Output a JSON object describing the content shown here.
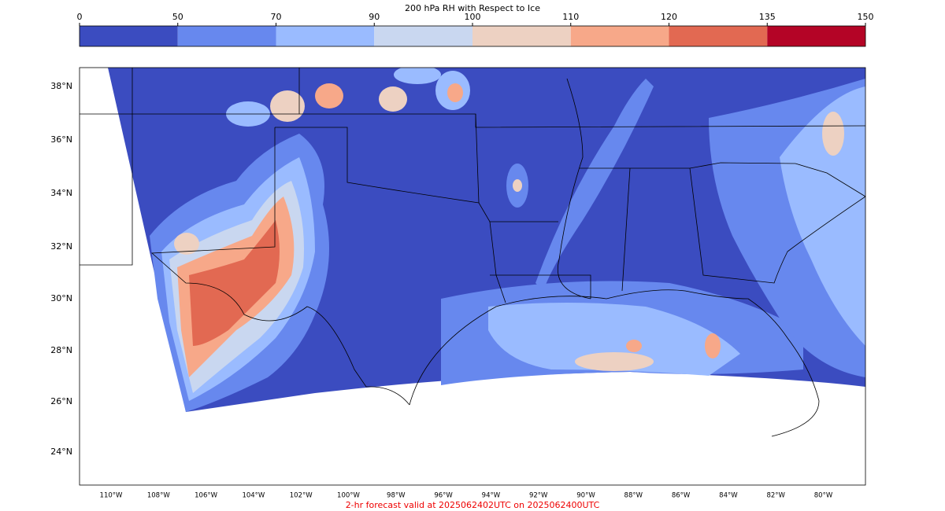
{
  "colorbar": {
    "title": "200 hPa RH with Respect to Ice",
    "ticks": [
      0,
      50,
      70,
      90,
      100,
      110,
      120,
      135,
      150
    ],
    "colors": [
      "#3b4cc0",
      "#6788ee",
      "#9abbff",
      "#c9d7f0",
      "#edd1c2",
      "#f7a889",
      "#e26952",
      "#b40426"
    ]
  },
  "lat_labels": [
    "38°N",
    "36°N",
    "34°N",
    "32°N",
    "30°N",
    "28°N",
    "26°N",
    "24°N"
  ],
  "lon_labels": [
    "110°W",
    "108°W",
    "106°W",
    "104°W",
    "102°W",
    "100°W",
    "98°W",
    "96°W",
    "94°W",
    "92°W",
    "90°W",
    "88°W",
    "86°W",
    "84°W",
    "82°W",
    "80°W"
  ],
  "footer": "2-hr forecast valid at 2025062402UTC on 2025062400UTC"
}
